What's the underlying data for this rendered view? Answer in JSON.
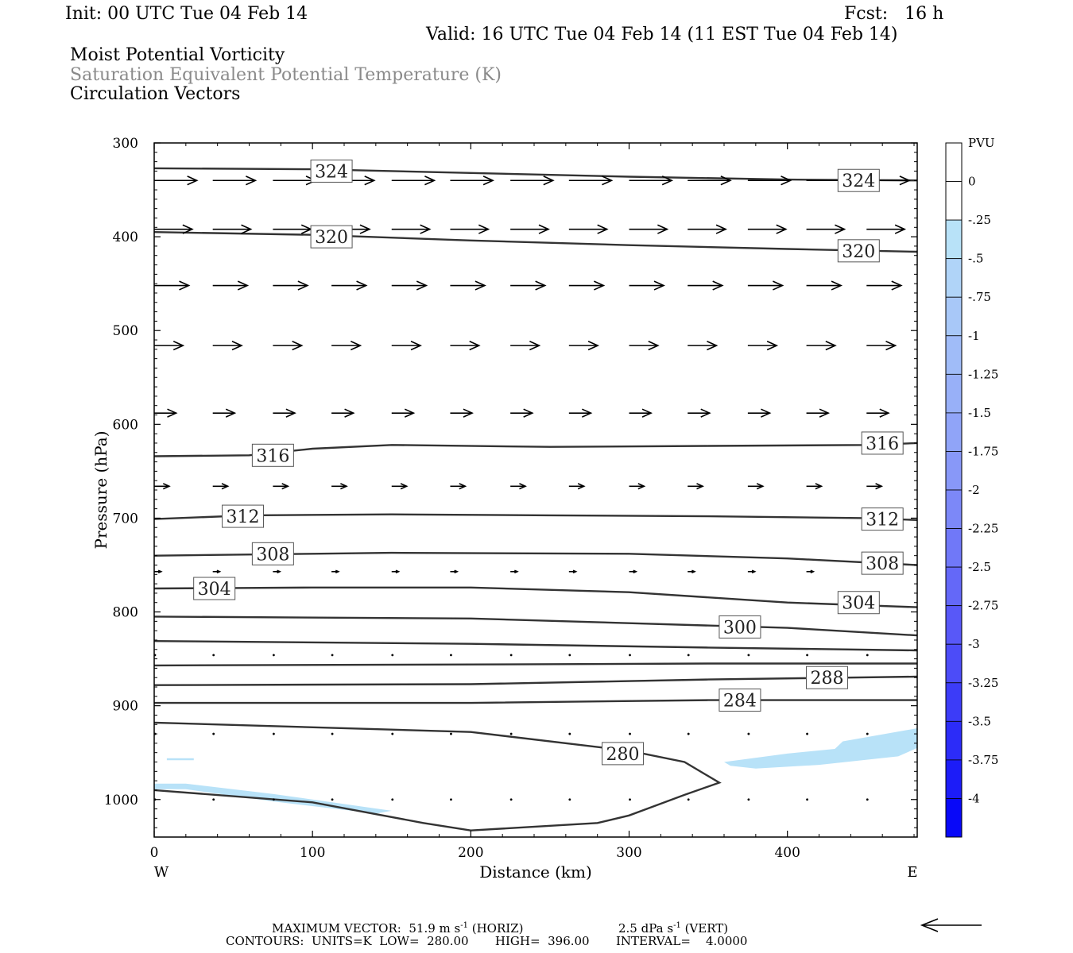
{
  "header": {
    "init": "Init: 00 UTC Tue 04 Feb 14",
    "fcst": "Fcst:   16 h",
    "valid": "Valid: 16 UTC Tue 04 Feb 14 (11 EST Tue 04 Feb 14)"
  },
  "fields": {
    "shaded": "Moist Potential Vorticity",
    "contour": "Saturation Equivalent Potential Temperature (K)",
    "vectors": "Circulation Vectors"
  },
  "footer": {
    "max_vector_prefix": "MAXIMUM VECTOR:  51.9 m s",
    "max_vector_exp": "-1",
    "max_vector_suffix": " (HORIZ)",
    "vert_prefix": "2.5 dPa s",
    "vert_exp": "-1",
    "vert_suffix": " (VERT)",
    "contours": "CONTOURS:  UNITS=K  LOW=  280.00       HIGH=  396.00       INTERVAL=    4.0000"
  },
  "colors": {
    "contour": "#333333",
    "pv_light": "#b8e2f8",
    "frame": "#000000"
  },
  "chart_data": {
    "type": "cross-section",
    "xlabel": "Distance (km)",
    "ylabel": "Pressure (hPa)",
    "xlim": [
      0,
      482
    ],
    "ylim": [
      1040,
      300
    ],
    "x_ticks": [
      0,
      100,
      200,
      300,
      400
    ],
    "y_ticks": [
      300,
      400,
      500,
      600,
      700,
      800,
      900,
      1000
    ],
    "x_end_labels": {
      "left": "W",
      "right": "E"
    },
    "colorbar": {
      "title": "PVU",
      "labels": [
        "0",
        "-.25",
        "-.5",
        "-.75",
        "-1",
        "-1.25",
        "-1.5",
        "-1.75",
        "-2",
        "-2.25",
        "-2.5",
        "-2.75",
        "-3",
        "-3.25",
        "-3.5",
        "-3.75",
        "-4"
      ],
      "boundaries": [
        0.25,
        0,
        -0.25,
        -0.5,
        -0.75,
        -1,
        -1.25,
        -1.5,
        -1.75,
        -2,
        -2.25,
        -2.5,
        -2.75,
        -3,
        -3.25,
        -3.5,
        -3.75,
        -4,
        -4.25
      ],
      "colors": [
        "#ffffff",
        "#ffffff",
        "#b8e2f8",
        "#b0d4f8",
        "#a8c8f8",
        "#a0bcf8",
        "#98b0f8",
        "#90a4f8",
        "#8898f8",
        "#7c88f8",
        "#7078f8",
        "#6468f8",
        "#5858f8",
        "#4c4cf8",
        "#3c3cf8",
        "#2c2cf8",
        "#1c1cf8",
        "#0808f8"
      ]
    },
    "contours": [
      {
        "value": 324,
        "label": "324",
        "points": [
          [
            0,
            327
          ],
          [
            100,
            328
          ],
          [
            200,
            332
          ],
          [
            300,
            336
          ],
          [
            400,
            339
          ],
          [
            482,
            340
          ]
        ],
        "label_at": [
          [
            112,
            330
          ],
          [
            445,
            340
          ]
        ]
      },
      {
        "value": 320,
        "label": "320",
        "points": [
          [
            0,
            395
          ],
          [
            100,
            398
          ],
          [
            200,
            404
          ],
          [
            300,
            409
          ],
          [
            400,
            413
          ],
          [
            482,
            416
          ]
        ],
        "label_at": [
          [
            112,
            400
          ],
          [
            445,
            415
          ]
        ]
      },
      {
        "value": 316,
        "label": "316",
        "points": [
          [
            0,
            634
          ],
          [
            60,
            633
          ],
          [
            100,
            626
          ],
          [
            150,
            622
          ],
          [
            250,
            624
          ],
          [
            350,
            623
          ],
          [
            450,
            622
          ],
          [
            482,
            620
          ]
        ],
        "label_at": [
          [
            75,
            633
          ],
          [
            460,
            620
          ]
        ]
      },
      {
        "value": 312,
        "label": "312",
        "points": [
          [
            0,
            701
          ],
          [
            60,
            697
          ],
          [
            150,
            696
          ],
          [
            250,
            697
          ],
          [
            350,
            698
          ],
          [
            450,
            700
          ],
          [
            482,
            702
          ]
        ],
        "label_at": [
          [
            56,
            698
          ],
          [
            460,
            701
          ]
        ]
      },
      {
        "value": 308,
        "label": "308",
        "points": [
          [
            0,
            740
          ],
          [
            100,
            738
          ],
          [
            150,
            737
          ],
          [
            300,
            738
          ],
          [
            400,
            743
          ],
          [
            482,
            750
          ]
        ],
        "label_at": [
          [
            75,
            738
          ],
          [
            460,
            748
          ]
        ]
      },
      {
        "value": 304,
        "label": "304",
        "points": [
          [
            0,
            775
          ],
          [
            100,
            774
          ],
          [
            200,
            774
          ],
          [
            300,
            779
          ],
          [
            400,
            790
          ],
          [
            482,
            795
          ]
        ],
        "label_at": [
          [
            38,
            775
          ],
          [
            445,
            790
          ]
        ]
      },
      {
        "value": 300,
        "label": "300",
        "points": [
          [
            0,
            805
          ],
          [
            200,
            807
          ],
          [
            300,
            812
          ],
          [
            400,
            817
          ],
          [
            482,
            825
          ]
        ],
        "label_at": [
          [
            370,
            816
          ]
        ]
      },
      {
        "value": 296,
        "label": "",
        "points": [
          [
            0,
            831
          ],
          [
            200,
            834
          ],
          [
            350,
            838
          ],
          [
            482,
            841
          ]
        ],
        "label_at": []
      },
      {
        "value": 292,
        "label": "",
        "points": [
          [
            0,
            857
          ],
          [
            200,
            856
          ],
          [
            350,
            855
          ],
          [
            482,
            855
          ]
        ],
        "label_at": []
      },
      {
        "value": 288,
        "label": "288",
        "points": [
          [
            0,
            878
          ],
          [
            200,
            877
          ],
          [
            350,
            872
          ],
          [
            482,
            869
          ]
        ],
        "label_at": [
          [
            425,
            870
          ]
        ]
      },
      {
        "value": 284,
        "label": "284",
        "points": [
          [
            0,
            897
          ],
          [
            200,
            897
          ],
          [
            350,
            894
          ],
          [
            482,
            894
          ]
        ],
        "label_at": [
          [
            370,
            894
          ]
        ]
      },
      {
        "value": 280,
        "label": "280",
        "points": [
          [
            0,
            918
          ],
          [
            200,
            928
          ],
          [
            300,
            948
          ],
          [
            335,
            960
          ],
          [
            357,
            982
          ],
          [
            335,
            995
          ],
          [
            300,
            1017
          ],
          [
            280,
            1025
          ],
          [
            200,
            1033
          ],
          [
            170,
            1025
          ],
          [
            100,
            1003
          ],
          [
            0,
            990
          ]
        ],
        "label_at": [
          [
            296,
            951
          ]
        ]
      }
    ],
    "pv_regions": [
      {
        "range": "-0.25 to -0.5",
        "points": [
          [
            0,
            983
          ],
          [
            20,
            983
          ],
          [
            75,
            994
          ],
          [
            150,
            1012
          ],
          [
            140,
            1015
          ],
          [
            75,
            1002
          ],
          [
            20,
            989
          ],
          [
            0,
            989
          ]
        ]
      },
      {
        "range": "-0.25 to -0.5",
        "points": [
          [
            8,
            956
          ],
          [
            25,
            956
          ],
          [
            25,
            958
          ],
          [
            8,
            958
          ]
        ]
      },
      {
        "range": "-0.25 to -0.5",
        "points": [
          [
            360,
            960
          ],
          [
            400,
            951
          ],
          [
            430,
            946
          ],
          [
            435,
            938
          ],
          [
            482,
            924
          ],
          [
            482,
            945
          ],
          [
            470,
            954
          ],
          [
            420,
            963
          ],
          [
            380,
            967
          ],
          [
            364,
            964
          ]
        ]
      }
    ],
    "vectors": {
      "rows": [
        {
          "p": 340,
          "dp_end": 342,
          "x": [
            0,
            37,
            75,
            112,
            150,
            187,
            225,
            262,
            300,
            337,
            375,
            412,
            450
          ],
          "u": [
            37,
            37,
            37,
            37,
            37,
            37,
            37,
            37,
            37,
            37,
            37,
            37,
            37
          ]
        },
        {
          "p": 392,
          "x": [
            0,
            37,
            75,
            112,
            150,
            187,
            225,
            262,
            300,
            337,
            375,
            412,
            450
          ],
          "u": [
            33,
            33,
            33,
            33,
            33,
            33,
            33,
            33,
            33,
            33,
            33,
            33,
            33
          ]
        },
        {
          "p": 452,
          "x": [
            0,
            37,
            75,
            112,
            150,
            187,
            225,
            262,
            300,
            337,
            375,
            412,
            450
          ],
          "u": [
            30,
            30,
            30,
            30,
            30,
            30,
            30,
            30,
            30,
            30,
            30,
            30,
            30
          ]
        },
        {
          "p": 516,
          "x": [
            0,
            37,
            75,
            112,
            150,
            187,
            225,
            262,
            300,
            337,
            375,
            412,
            450
          ],
          "u": [
            25,
            25,
            25,
            25,
            25,
            25,
            25,
            25,
            25,
            25,
            25,
            25,
            25
          ]
        },
        {
          "p": 588,
          "x": [
            0,
            37,
            75,
            112,
            150,
            187,
            225,
            262,
            300,
            337,
            375,
            412,
            450
          ],
          "u": [
            19,
            19,
            19,
            19,
            19,
            19,
            19,
            19,
            19,
            19,
            19,
            19,
            19
          ]
        },
        {
          "p": 666,
          "x": [
            0,
            37,
            75,
            112,
            150,
            187,
            225,
            262,
            300,
            337,
            375,
            412,
            450
          ],
          "u": [
            13,
            13,
            13,
            13,
            13,
            13,
            13,
            13,
            13,
            13,
            13,
            13,
            13
          ]
        },
        {
          "p": 757,
          "x": [
            0,
            37,
            75,
            112,
            150,
            187,
            225,
            262,
            300,
            337,
            375,
            412,
            450
          ],
          "u": [
            6,
            6,
            6,
            6,
            6,
            6,
            6,
            6,
            6,
            6,
            6,
            6,
            6
          ]
        },
        {
          "p": 846,
          "x": [
            0,
            37,
            75,
            112,
            150,
            187,
            225,
            262,
            300,
            337,
            375,
            412,
            450
          ],
          "u": [
            1,
            1,
            1,
            1,
            1,
            1,
            1,
            1,
            1,
            1,
            1,
            1,
            1
          ]
        },
        {
          "p": 930,
          "x": [
            0,
            37,
            75,
            112,
            150,
            187,
            225,
            262,
            300,
            337,
            375,
            412,
            450
          ],
          "u": [
            0.5,
            0.5,
            0.5,
            0.5,
            0.5,
            0.5,
            0.5,
            0.5,
            0.5,
            0.5,
            0.5,
            0.5,
            0.5
          ]
        },
        {
          "p": 1000,
          "x": [
            0,
            37,
            75,
            112,
            150,
            187,
            225,
            262,
            300,
            337,
            375,
            412,
            450
          ],
          "u": [
            0.5,
            0.5,
            0.5,
            0.5,
            0.5,
            0.5,
            0.5,
            0.5,
            0.5,
            0.5,
            0.5,
            0.5,
            0.5
          ]
        }
      ]
    }
  }
}
